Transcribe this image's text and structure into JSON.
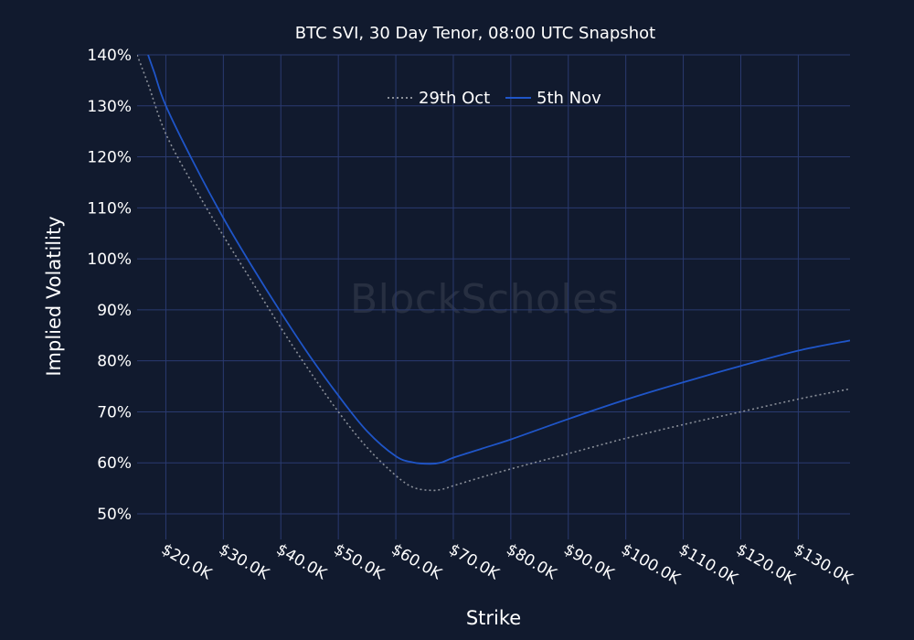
{
  "chart_data": {
    "type": "line",
    "title": "BTC SVI, 30 Day Tenor, 08:00 UTC Snapshot",
    "xlabel": "Strike",
    "ylabel": "Implied Volatility",
    "watermark": "BlockScholes",
    "xlim": [
      15000,
      139000
    ],
    "ylim": [
      45,
      140
    ],
    "x_ticks": [
      20000,
      30000,
      40000,
      50000,
      60000,
      70000,
      80000,
      90000,
      100000,
      110000,
      120000,
      130000
    ],
    "x_tick_labels": [
      "$20.0K",
      "$30.0K",
      "$40.0K",
      "$50.0K",
      "$60.0K",
      "$70.0K",
      "$80.0K",
      "$90.0K",
      "$100.0K",
      "$110.0K",
      "$120.0K",
      "$130.0K"
    ],
    "y_ticks": [
      50,
      60,
      70,
      80,
      90,
      100,
      110,
      120,
      130,
      140
    ],
    "y_tick_labels": [
      "50%",
      "60%",
      "70%",
      "80%",
      "90%",
      "100%",
      "110%",
      "120%",
      "130%",
      "140%"
    ],
    "grid": true,
    "legend": "top-center",
    "series": [
      {
        "name": "29th Oct",
        "color": "#8a8f99",
        "dash": "dotted",
        "x": [
          15000,
          17000,
          20000,
          25000,
          30000,
          35000,
          40000,
          45000,
          50000,
          55000,
          60000,
          63000,
          66000,
          68000,
          70000,
          75000,
          80000,
          90000,
          100000,
          110000,
          120000,
          130000,
          139000
        ],
        "y": [
          140,
          134,
          124.5,
          114,
          104.5,
          95.5,
          86.5,
          78,
          70,
          63,
          57.5,
          55.2,
          54.6,
          54.8,
          55.5,
          57.2,
          58.8,
          61.8,
          64.8,
          67.5,
          70,
          72.5,
          74.5
        ]
      },
      {
        "name": "5th Nov",
        "color": "#1f55c8",
        "dash": "solid",
        "x": [
          16900,
          18000,
          20000,
          25000,
          30000,
          35000,
          40000,
          45000,
          50000,
          55000,
          60000,
          63000,
          66000,
          68000,
          70000,
          75000,
          80000,
          90000,
          100000,
          110000,
          120000,
          130000,
          139000
        ],
        "y": [
          140,
          136.5,
          130,
          118.5,
          108,
          98.5,
          89.5,
          81,
          73.2,
          66.2,
          61.3,
          60.1,
          59.8,
          60.1,
          61,
          62.8,
          64.6,
          68.6,
          72.4,
          75.8,
          79,
          82,
          84
        ]
      }
    ]
  }
}
